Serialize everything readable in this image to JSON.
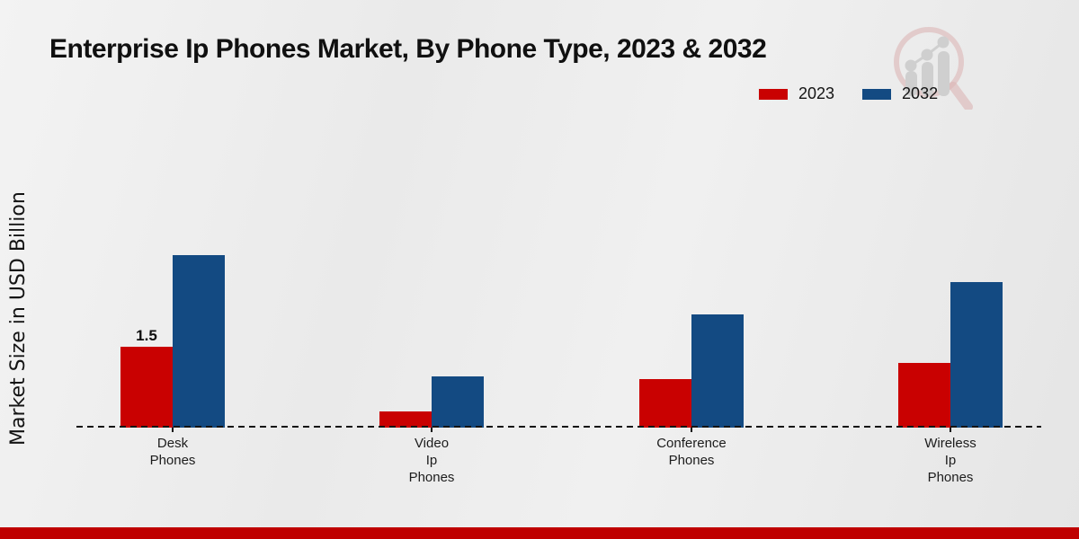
{
  "header": {
    "title": "Enterprise Ip Phones Market, By Phone Type, 2023 & 2032"
  },
  "legend": {
    "items": [
      {
        "label": "2023",
        "color": "#c90101"
      },
      {
        "label": "2032",
        "color": "#134a82"
      }
    ]
  },
  "footer": {
    "band_color": "#bf0000"
  },
  "chart_data": {
    "type": "bar",
    "title": "Enterprise Ip Phones Market, By Phone Type, 2023 & 2032",
    "xlabel": "",
    "ylabel": "Market Size in USD Billion",
    "categories": [
      "Desk\nPhones",
      "Video\nIp\nPhones",
      "Conference\nPhones",
      "Wireless\nIp\nPhones"
    ],
    "series": [
      {
        "name": "2023",
        "color": "#c90101",
        "values": [
          1.5,
          0.3,
          0.9,
          1.2
        ]
      },
      {
        "name": "2032",
        "color": "#134a82",
        "values": [
          3.2,
          0.95,
          2.1,
          2.7
        ]
      }
    ],
    "annotations": [
      {
        "series": "2023",
        "category_index": 0,
        "text": "1.5"
      }
    ],
    "ylim": [
      0,
      4
    ],
    "grid": false,
    "y_axis_visible": false,
    "baseline_style": "dashed",
    "legend_position": "upper right"
  }
}
